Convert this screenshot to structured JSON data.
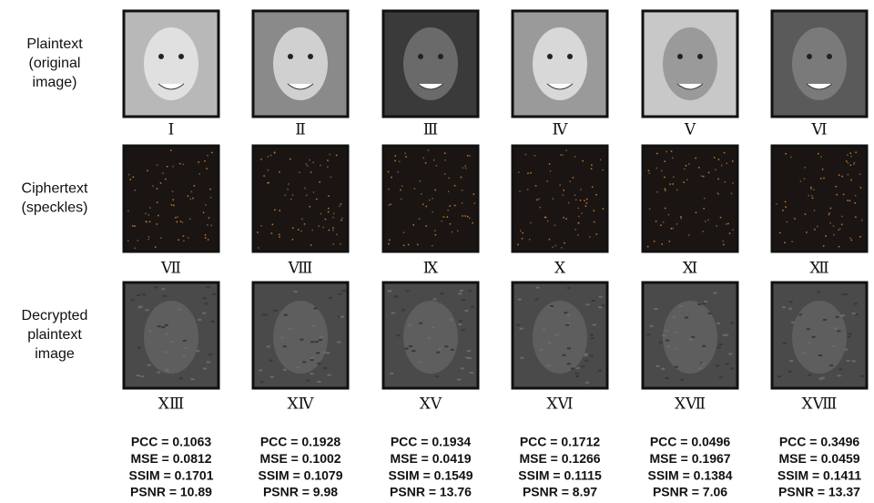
{
  "row_labels": [
    [
      "Plaintext",
      "(original",
      "image)"
    ],
    [
      "Ciphertext",
      "(speckles)"
    ],
    [
      "Decrypted",
      "plaintext",
      "image"
    ]
  ],
  "columns": [
    {
      "labels": [
        "Ⅰ",
        "Ⅶ",
        "XⅢ"
      ],
      "metrics": [
        "PCC = 0.1063",
        "MSE = 0.0812",
        "SSIM = 0.1701",
        "PSNR = 10.89"
      ]
    },
    {
      "labels": [
        "Ⅱ",
        "Ⅷ",
        "XⅣ"
      ],
      "metrics": [
        "PCC = 0.1928",
        "MSE = 0.1002",
        "SSIM = 0.1079",
        "PSNR = 9.98"
      ]
    },
    {
      "labels": [
        "Ⅲ",
        "Ⅸ",
        "XⅤ"
      ],
      "metrics": [
        "PCC = 0.1934",
        "MSE = 0.0419",
        "SSIM = 0.1549",
        "PSNR = 13.76"
      ]
    },
    {
      "labels": [
        "Ⅳ",
        "Ⅹ",
        "XⅥ"
      ],
      "metrics": [
        "PCC = 0.1712",
        "MSE = 0.1266",
        "SSIM = 0.1115",
        "PSNR = 8.97"
      ]
    },
    {
      "labels": [
        "Ⅴ",
        "Ⅺ",
        "XⅦ"
      ],
      "metrics": [
        "PCC = 0.0496",
        "MSE = 0.1967",
        "SSIM = 0.1384",
        "PSNR = 7.06"
      ]
    },
    {
      "labels": [
        "Ⅵ",
        "Ⅻ",
        "XⅧ"
      ],
      "metrics": [
        "PCC = 0.3496",
        "MSE = 0.0459",
        "SSIM = 0.1411",
        "PSNR = 13.37"
      ]
    }
  ]
}
